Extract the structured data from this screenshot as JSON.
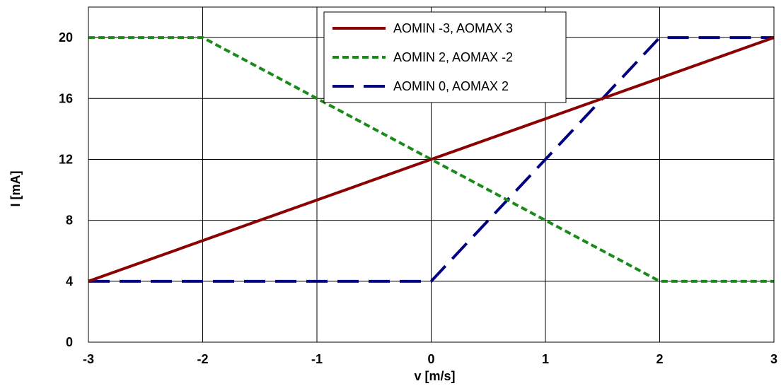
{
  "chart_data": {
    "type": "line",
    "xlabel": "v [m/s]",
    "ylabel": "I [mA]",
    "xlim": [
      -3,
      3
    ],
    "ylim": [
      0,
      22
    ],
    "xticks": [
      -3,
      -2,
      -1,
      0,
      1,
      2,
      3
    ],
    "yticks": [
      0,
      4,
      8,
      12,
      16,
      20
    ],
    "grid": true,
    "legend_position": "top-center",
    "series": [
      {
        "name": "AOMIN -3, AOMAX 3",
        "color": "#8b0000",
        "style": "solid",
        "x": [
          -3,
          3
        ],
        "y": [
          4,
          20
        ]
      },
      {
        "name": "AOMIN 2, AOMAX -2",
        "color": "#1a8a1a",
        "style": "dotted",
        "x": [
          -3,
          -2,
          2,
          3
        ],
        "y": [
          20,
          20,
          4,
          4
        ]
      },
      {
        "name": "AOMIN 0, AOMAX 2",
        "color": "#000080",
        "style": "dashed",
        "x": [
          -3,
          0,
          0,
          2,
          3
        ],
        "y": [
          4,
          4,
          4,
          20,
          20
        ]
      }
    ]
  }
}
